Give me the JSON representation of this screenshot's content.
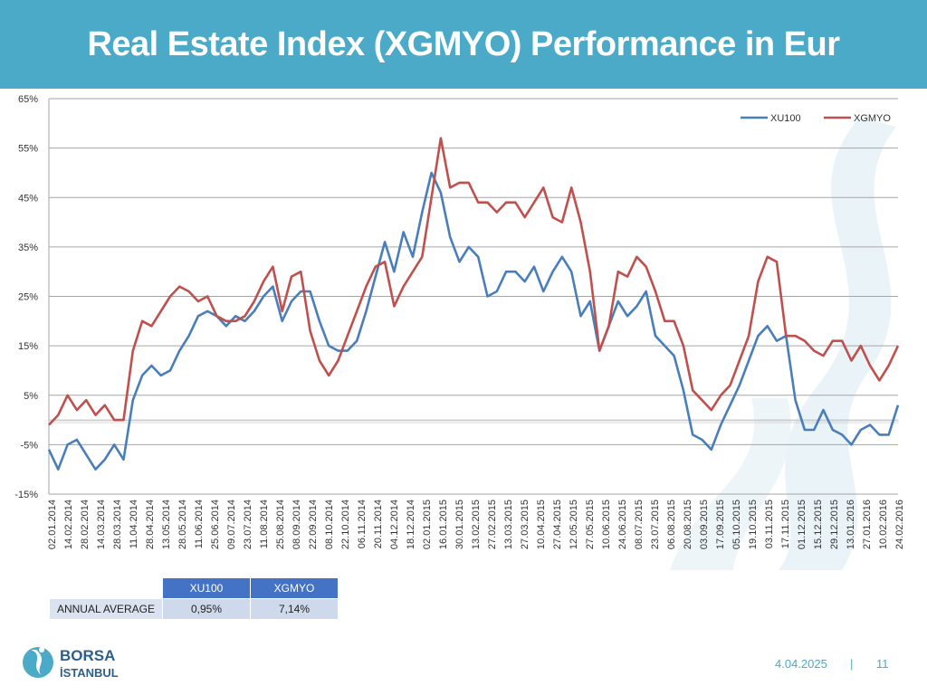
{
  "header": {
    "title": "Real Estate Index (XGMYO) Performance in Eur"
  },
  "chart_data": {
    "type": "line",
    "title": "",
    "xlabel": "",
    "ylabel": "",
    "ylim": [
      -15,
      65
    ],
    "yticks": [
      65,
      55,
      45,
      35,
      25,
      15,
      5,
      -5,
      -15
    ],
    "ytick_labels": [
      "65%",
      "55%",
      "45%",
      "35%",
      "25%",
      "15%",
      "5%",
      "-5%",
      "-15%"
    ],
    "grid": true,
    "legend_position": "top-right",
    "x_tick_labels": [
      "02.01.2014",
      "14.02.2014",
      "28.02.2014",
      "14.03.2014",
      "28.03.2014",
      "11.04.2014",
      "28.04.2014",
      "13.05.2014",
      "28.05.2014",
      "11.06.2014",
      "25.06.2014",
      "09.07.2014",
      "23.07.2014",
      "11.08.2014",
      "25.08.2014",
      "08.09.2014",
      "22.09.2014",
      "08.10.2014",
      "22.10.2014",
      "06.11.2014",
      "20.11.2014",
      "04.12.2014",
      "18.12.2014",
      "02.01.2015",
      "16.01.2015",
      "30.01.2015",
      "13.02.2015",
      "27.02.2015",
      "13.03.2015",
      "27.03.2015",
      "10.04.2015",
      "27.04.2015",
      "12.05.2015",
      "27.05.2015",
      "10.06.2015",
      "24.06.2015",
      "08.07.2015",
      "23.07.2015",
      "06.08.2015",
      "20.08.2015",
      "03.09.2015",
      "17.09.2015",
      "05.10.2015",
      "19.10.2015",
      "03.11.2015",
      "17.11.2015",
      "01.12.2015",
      "15.12.2015",
      "29.12.2015",
      "13.01.2016",
      "27.01.2016",
      "10.02.2016",
      "24.02.2016"
    ],
    "series": [
      {
        "name": "XU100",
        "color": "#4a7ebb",
        "values": [
          -6,
          -10,
          -5,
          -4,
          -7,
          -10,
          -8,
          -5,
          -8,
          4,
          9,
          11,
          9,
          10,
          14,
          17,
          21,
          22,
          21,
          19,
          21,
          20,
          22,
          25,
          27,
          20,
          24,
          26,
          26,
          20,
          15,
          14,
          14,
          16,
          22,
          29,
          36,
          30,
          38,
          33,
          42,
          50,
          46,
          37,
          32,
          35,
          33,
          25,
          26,
          30,
          30,
          28,
          31,
          26,
          30,
          33,
          30,
          21,
          24,
          14,
          19,
          24,
          21,
          23,
          26,
          17,
          15,
          13,
          6,
          -3,
          -4,
          -6,
          -1,
          3,
          7,
          12,
          17,
          19,
          16,
          17,
          4,
          -2,
          -2,
          2,
          -2,
          -3,
          -5,
          -2,
          -1,
          -3,
          -3,
          3
        ]
      },
      {
        "name": "XGMYO",
        "color": "#c0504d",
        "values": [
          -1,
          1,
          5,
          2,
          4,
          1,
          3,
          0,
          0,
          14,
          20,
          19,
          22,
          25,
          27,
          26,
          24,
          25,
          21,
          20,
          20,
          21,
          24,
          28,
          31,
          22,
          29,
          30,
          18,
          12,
          9,
          12,
          17,
          22,
          27,
          31,
          32,
          23,
          27,
          30,
          33,
          45,
          57,
          47,
          48,
          48,
          44,
          44,
          42,
          44,
          44,
          41,
          44,
          47,
          41,
          40,
          47,
          40,
          30,
          14,
          19,
          30,
          29,
          33,
          31,
          26,
          20,
          20,
          15,
          6,
          4,
          2,
          5,
          7,
          12,
          17,
          28,
          33,
          32,
          17,
          17,
          16,
          14,
          13,
          16,
          16,
          12,
          15,
          11,
          8,
          11,
          15
        ]
      }
    ]
  },
  "legend": {
    "items": [
      "XU100",
      "XGMYO"
    ]
  },
  "summary_table": {
    "columns": [
      "XU100",
      "XGMYO"
    ],
    "row_label": "ANNUAL AVERAGE",
    "values": [
      "0,95%",
      "7,14%"
    ]
  },
  "logo": {
    "line1": "BORSA",
    "line2": "İSTANBUL"
  },
  "footer": {
    "date": "4.04.2025",
    "separator": "|",
    "page": "11"
  },
  "colors": {
    "header": "#4aaac7",
    "xu100": "#4a7ebb",
    "xgmyo": "#c0504d",
    "table_header": "#4472c4"
  }
}
